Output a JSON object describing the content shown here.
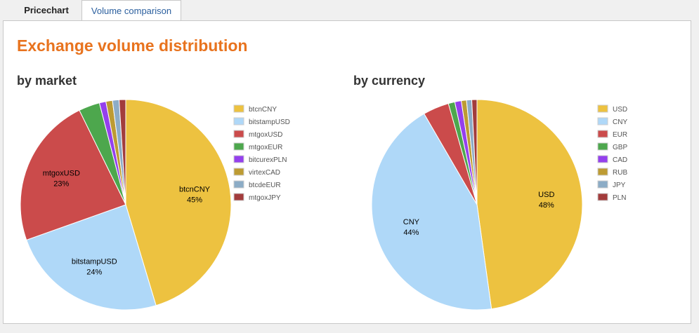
{
  "tabs": [
    {
      "label": "Pricechart",
      "active": false
    },
    {
      "label": "Volume comparison",
      "active": true
    }
  ],
  "page": {
    "title": "Exchange volume distribution"
  },
  "chart_data": [
    {
      "type": "pie",
      "title": "by market",
      "legend": "right",
      "slices": [
        {
          "name": "btcnCNY",
          "value": 45,
          "color": "#edc240",
          "label": "45%"
        },
        {
          "name": "bitstampUSD",
          "value": 24,
          "color": "#afd8f8",
          "label": "24%"
        },
        {
          "name": "mtgoxUSD",
          "value": 23,
          "color": "#cb4b4b",
          "label": "23%"
        },
        {
          "name": "mtgoxEUR",
          "value": 3.2,
          "color": "#4da74d",
          "label": ""
        },
        {
          "name": "bitcurexPLN",
          "value": 1.0,
          "color": "#9440ed",
          "label": ""
        },
        {
          "name": "virtexCAD",
          "value": 1.0,
          "color": "#bd9b33",
          "label": ""
        },
        {
          "name": "btcdeEUR",
          "value": 1.0,
          "color": "#8cacc6",
          "label": ""
        },
        {
          "name": "mtgoxJPY",
          "value": 1.0,
          "color": "#a23c3c",
          "label": ""
        }
      ]
    },
    {
      "type": "pie",
      "title": "by currency",
      "legend": "right",
      "slices": [
        {
          "name": "USD",
          "value": 48,
          "color": "#edc240",
          "label": "48%"
        },
        {
          "name": "CNY",
          "value": 44,
          "color": "#afd8f8",
          "label": "44%"
        },
        {
          "name": "EUR",
          "value": 4.0,
          "color": "#cb4b4b",
          "label": ""
        },
        {
          "name": "GBP",
          "value": 1.0,
          "color": "#4da74d",
          "label": ""
        },
        {
          "name": "CAD",
          "value": 1.0,
          "color": "#9440ed",
          "label": ""
        },
        {
          "name": "RUB",
          "value": 0.8,
          "color": "#bd9b33",
          "label": ""
        },
        {
          "name": "JPY",
          "value": 0.8,
          "color": "#8cacc6",
          "label": ""
        },
        {
          "name": "PLN",
          "value": 0.8,
          "color": "#a23c3c",
          "label": ""
        }
      ]
    }
  ]
}
